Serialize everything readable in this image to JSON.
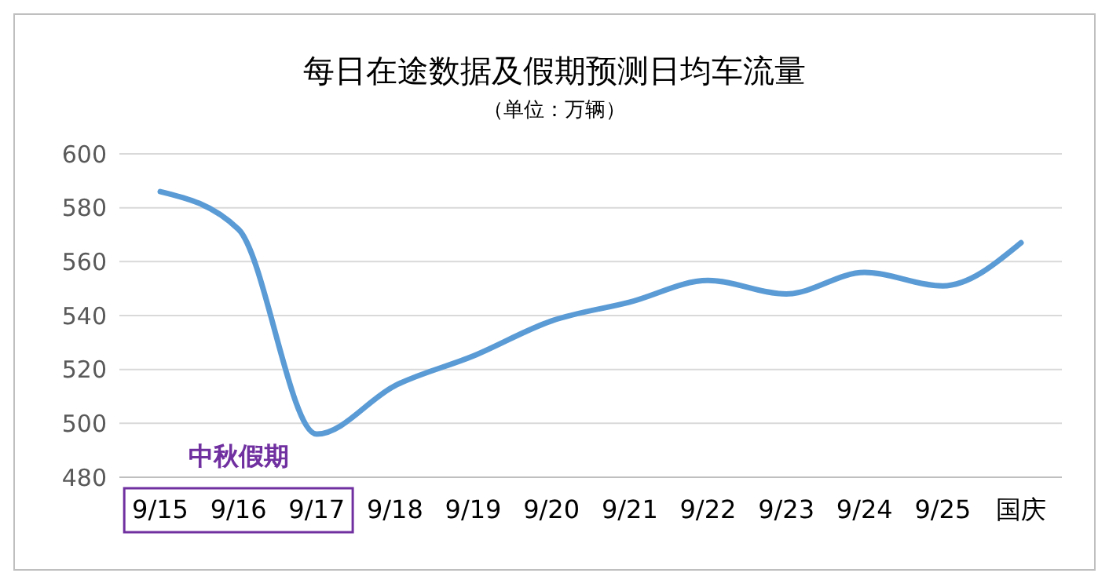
{
  "chart_data": {
    "type": "line",
    "title": "每日在途数据及假期预测日均车流量",
    "subtitle": "（单位：万辆）",
    "categories": [
      "9/15",
      "9/16",
      "9/17",
      "9/18",
      "9/19",
      "9/20",
      "9/21",
      "9/22",
      "9/23",
      "9/24",
      "9/25",
      "国庆"
    ],
    "series": [
      {
        "color": "#5b9bd5",
        "values": [
          586,
          572,
          496,
          514,
          525,
          538,
          545,
          553,
          548,
          556,
          551,
          567
        ]
      }
    ],
    "ylim": [
      480,
      600
    ],
    "yticks": [
      480,
      500,
      520,
      540,
      560,
      580,
      600
    ],
    "grid": "y",
    "annotations": [
      "中秋假期"
    ]
  }
}
